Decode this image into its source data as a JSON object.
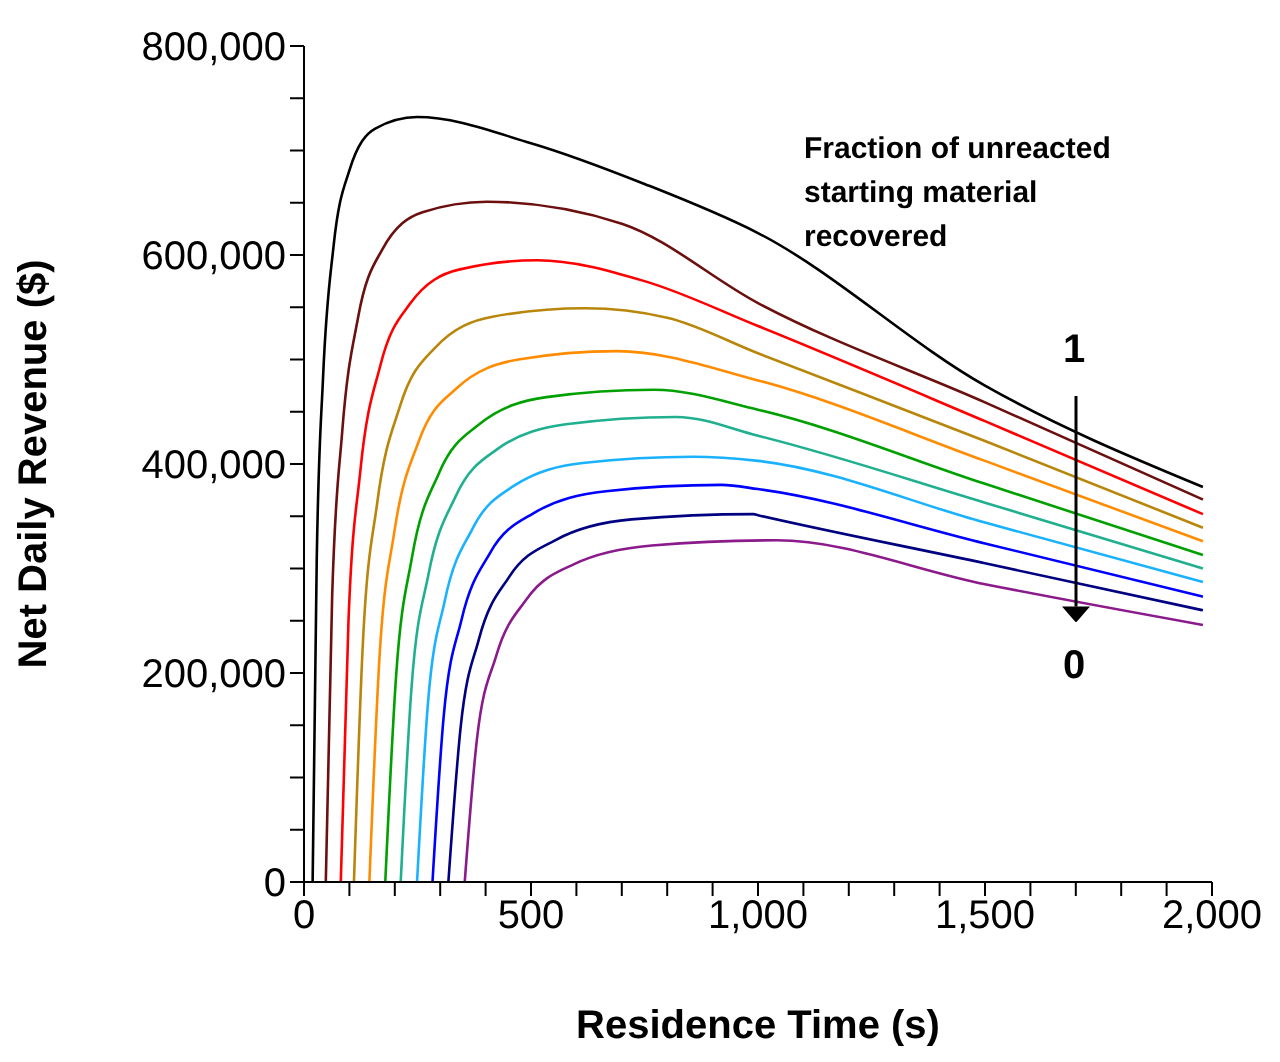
{
  "chart_data": {
    "type": "line",
    "xlabel": "Residence Time (s)",
    "ylabel": "Net Daily Revenue ($)",
    "xlim": [
      0,
      2000
    ],
    "ylim": [
      0,
      800000
    ],
    "xticks": [
      0,
      {
        "value": 100,
        "label": null
      },
      {
        "value": 200,
        "label": null
      },
      {
        "value": 300,
        "label": null
      },
      {
        "value": 400,
        "label": null
      },
      500,
      {
        "value": 600,
        "label": null
      },
      {
        "value": 700,
        "label": null
      },
      {
        "value": 800,
        "label": null
      },
      {
        "value": 900,
        "label": null
      },
      {
        "value": 1000,
        "label": "1,000"
      },
      {
        "value": 1100,
        "label": null
      },
      {
        "value": 1200,
        "label": null
      },
      {
        "value": 1300,
        "label": null
      },
      {
        "value": 1400,
        "label": null
      },
      {
        "value": 1500,
        "label": "1,500"
      },
      {
        "value": 1600,
        "label": null
      },
      {
        "value": 1700,
        "label": null
      },
      {
        "value": 1800,
        "label": null
      },
      {
        "value": 1900,
        "label": null
      },
      {
        "value": 2000,
        "label": "2,000"
      }
    ],
    "yticks": [
      0,
      {
        "value": 50000,
        "label": null
      },
      {
        "value": 100000,
        "label": null
      },
      {
        "value": 150000,
        "label": null
      },
      {
        "value": 200000,
        "label": "200,000"
      },
      {
        "value": 250000,
        "label": null
      },
      {
        "value": 300000,
        "label": null
      },
      {
        "value": 350000,
        "label": null
      },
      {
        "value": 400000,
        "label": "400,000"
      },
      {
        "value": 450000,
        "label": null
      },
      {
        "value": 500000,
        "label": null
      },
      {
        "value": 550000,
        "label": null
      },
      {
        "value": 600000,
        "label": "600,000"
      },
      {
        "value": 650000,
        "label": null
      },
      {
        "value": 700000,
        "label": null
      },
      {
        "value": 750000,
        "label": null
      },
      {
        "value": 800000,
        "label": "800,000"
      }
    ],
    "annotations": [
      "Fraction of unreacted starting material recovered",
      {
        "text": "1",
        "x": 1700,
        "y": 435000
      },
      "0"
    ],
    "series": [
      {
        "color": "#000000",
        "x": [
          19,
          28,
          42,
          65,
          100,
          157,
          249,
          500,
          750,
          1000,
          1500,
          1980
        ],
        "values": [
          0,
          307000,
          483000,
          608000,
          681000,
          721000,
          732000,
          707000,
          668000,
          621000,
          475000,
          378000
        ]
      },
      {
        "color": "#6b0f0f",
        "x": [
          48,
          62,
          84,
          119,
          172,
          261,
          403,
          700,
          1000,
          1500,
          1980
        ],
        "values": [
          0,
          273000,
          430000,
          540000,
          605000,
          641000,
          651000,
          630000,
          554000,
          459000,
          366000
        ]
      },
      {
        "color": "#ff0000",
        "x": [
          81,
          98,
          124,
          168,
          233,
          341,
          514,
          750,
          1000,
          1500,
          1980
        ],
        "values": [
          0,
          250000,
          393000,
          494000,
          553000,
          586000,
          595000,
          575000,
          532000,
          441000,
          352000
        ]
      },
      {
        "color": "#b8860b",
        "x": [
          110,
          130,
          161,
          212,
          288,
          415,
          619,
          800,
          1000,
          1500,
          1980
        ],
        "values": [
          0,
          231000,
          362000,
          456000,
          511000,
          541000,
          549000,
          540000,
          506000,
          422000,
          339000
        ]
      },
      {
        "color": "#ff8c00",
        "x": [
          144,
          166,
          199,
          253,
          335,
          472,
          690,
          1000,
          1500,
          1980
        ],
        "values": [
          0,
          213000,
          335000,
          422000,
          472000,
          500000,
          508000,
          480000,
          403000,
          326000
        ]
      },
      {
        "color": "#00a000",
        "x": [
          179,
          203,
          238,
          297,
          386,
          534,
          771,
          1000,
          1500,
          1980
        ],
        "values": [
          0,
          198000,
          311000,
          391000,
          438000,
          464000,
          471000,
          452000,
          381000,
          313000
        ]
      },
      {
        "color": "#20b090",
        "x": [
          213,
          237,
          274,
          334,
          425,
          577,
          820,
          1000,
          1500,
          1980
        ],
        "values": [
          0,
          187000,
          294000,
          369000,
          414000,
          438000,
          445000,
          427000,
          363000,
          300000
        ]
      },
      {
        "color": "#1ab2ff",
        "x": [
          249,
          273,
          310,
          371,
          462,
          614,
          857,
          1000,
          1500,
          1980
        ],
        "values": [
          0,
          171000,
          269000,
          338000,
          379000,
          401000,
          407000,
          403000,
          344000,
          287000
        ]
      },
      {
        "color": "#0000ff",
        "x": [
          283,
          308,
          347,
          410,
          506,
          665,
          920,
          1000,
          1500,
          1980
        ],
        "values": [
          0,
          160000,
          251000,
          315000,
          353000,
          374000,
          380000,
          376000,
          324000,
          273000
        ]
      },
      {
        "color": "#000080",
        "x": [
          318,
          345,
          385,
          452,
          553,
          721,
          990,
          1000,
          1500,
          1980
        ],
        "values": [
          0,
          148000,
          232000,
          292000,
          327000,
          347000,
          352000,
          351000,
          305000,
          260000
        ]
      },
      {
        "color": "#8b1a8b",
        "x": [
          354,
          381,
          423,
          491,
          594,
          766,
          1040,
          1500,
          1980
        ],
        "values": [
          0,
          137000,
          216000,
          271000,
          304000,
          322000,
          327000,
          285000,
          246000
        ]
      }
    ]
  }
}
